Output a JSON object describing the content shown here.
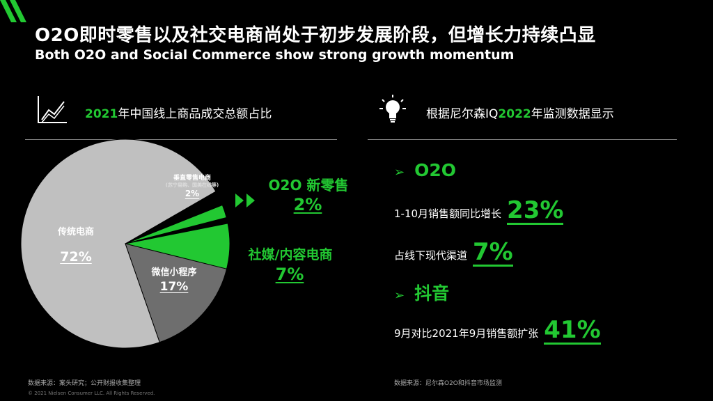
{
  "header": {
    "title_cn": "O2O即时零售以及社交电商尚处于初步发展阶段，但增长力持续凸显",
    "title_en": "Both O2O and Social Commerce show strong growth momentum"
  },
  "left": {
    "section_year": "2021",
    "section_title": "年中国线上商品成交总额占比",
    "icon": "chart-trend-icon",
    "slices": {
      "traditional": {
        "label": "传统电商",
        "pct": "72%",
        "value": 72
      },
      "wechat": {
        "label": "微信小程序",
        "pct": "17%",
        "value": 17
      },
      "vertical": {
        "label": "垂直零售电商",
        "sub": "(苏宁易购、国美在线等)",
        "pct": "2%",
        "value": 2
      },
      "o2o": {
        "label": "O2O 新零售",
        "pct": "2%",
        "value": 2
      },
      "social": {
        "label": "社媒/内容电商",
        "pct": "7%",
        "value": 7
      }
    },
    "source": "数据来源：案头研究；公开财报收集整理"
  },
  "right": {
    "section_prefix": "根据尼尔森IQ",
    "section_year": "2022",
    "section_suffix": "年监测数据显示",
    "icon": "lightbulb-icon",
    "o2o_heading": "O2O",
    "o2o_stat1_label": "1-10月销售额同比增长",
    "o2o_stat1_value": "23%",
    "o2o_stat2_label": "占线下现代渠道",
    "o2o_stat2_value": "7%",
    "douyin_heading": "抖音",
    "douyin_stat_label": "9月对比2021年9月销售额扩张",
    "douyin_stat_value": "41%",
    "source": "数据来源：尼尔森O2O和抖音市场监测"
  },
  "footer": {
    "copyright": "© 2021 Nielsen Consumer LLC. All Rights Reserved."
  },
  "colors": {
    "accent": "#22c832",
    "traditional": "#c0c0c0",
    "wechat": "#6e6e6e",
    "vertical": "#3a3a3a"
  }
}
